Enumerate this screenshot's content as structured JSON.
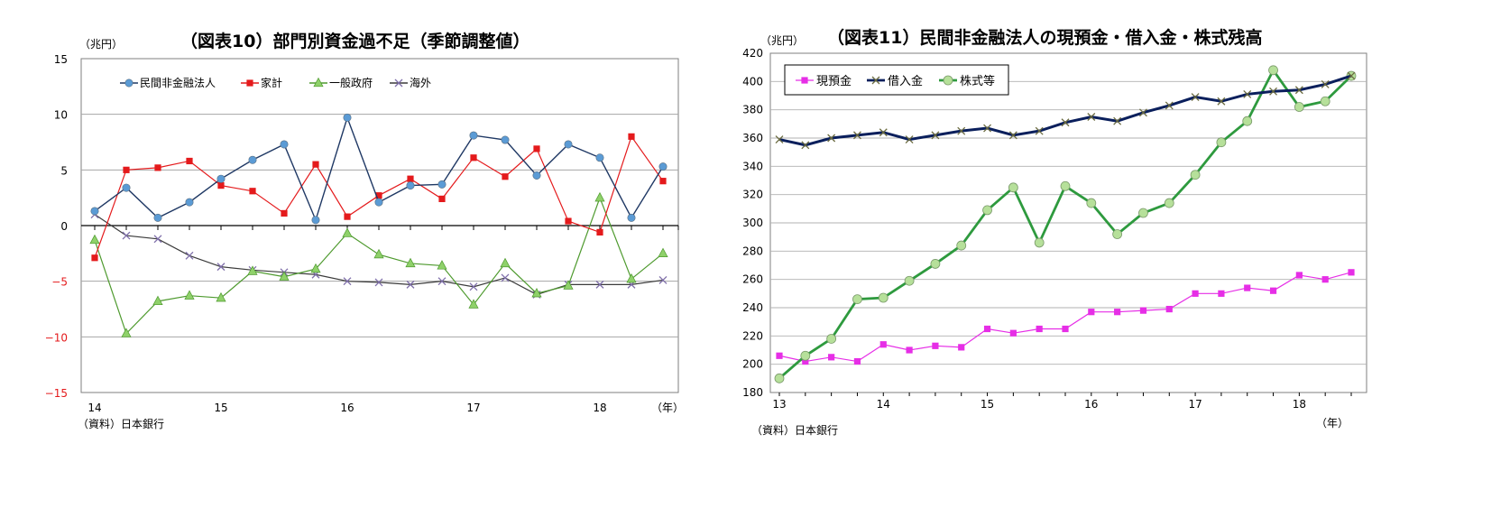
{
  "chart_data": [
    {
      "type": "line",
      "title": "（図表10）部門別資金過不足（季節調整値）",
      "unit_label": "（兆円）",
      "source": "（資料）日本銀行",
      "x_unit": "（年）",
      "xticks": [
        "14",
        "15",
        "16",
        "17",
        "18"
      ],
      "yticks": [
        "15",
        "10",
        "5",
        "0",
        "−5",
        "−10",
        "−15"
      ],
      "ylim": [
        -15,
        15
      ],
      "legend_position": "top-left",
      "x": [
        "2014Q1",
        "2014Q2",
        "2014Q3",
        "2014Q4",
        "2015Q1",
        "2015Q2",
        "2015Q3",
        "2015Q4",
        "2016Q1",
        "2016Q2",
        "2016Q3",
        "2016Q4",
        "2017Q1",
        "2017Q2",
        "2017Q3",
        "2017Q4",
        "2018Q1",
        "2018Q2",
        "2018Q3"
      ],
      "series": [
        {
          "name": "民間非金融法人",
          "color": "#1F3864",
          "marker": "circle",
          "marker_color": "#5B9BD5",
          "values": [
            1.3,
            3.4,
            0.7,
            2.1,
            4.2,
            5.9,
            7.3,
            0.5,
            9.7,
            2.1,
            3.6,
            3.7,
            8.1,
            7.7,
            4.5,
            7.3,
            6.1,
            0.7,
            5.3
          ]
        },
        {
          "name": "家計",
          "color": "#E41A1C",
          "marker": "square",
          "marker_color": "#E41A1C",
          "values": [
            -2.9,
            5.0,
            5.2,
            5.8,
            3.6,
            3.1,
            1.1,
            5.5,
            0.8,
            2.7,
            4.2,
            2.4,
            6.1,
            4.4,
            6.9,
            0.4,
            -0.6,
            8.0,
            4.0
          ]
        },
        {
          "name": "一般政府",
          "color": "#4E9A2E",
          "marker": "triangle",
          "marker_color": "#8FD16A",
          "values": [
            -1.3,
            -9.7,
            -6.8,
            -6.3,
            -6.5,
            -4.1,
            -4.6,
            -3.9,
            -0.7,
            -2.6,
            -3.4,
            -3.6,
            -7.1,
            -3.4,
            -6.1,
            -5.4,
            2.5,
            -4.8,
            -2.5
          ]
        },
        {
          "name": "海外",
          "color": "#3B3B3B",
          "marker": "x",
          "marker_color": "#7F6FAA",
          "values": [
            1.0,
            -0.9,
            -1.2,
            -2.7,
            -3.7,
            -4.0,
            -4.2,
            -4.4,
            -5.0,
            -5.1,
            -5.3,
            -5.0,
            -5.5,
            -4.7,
            -6.2,
            -5.3,
            -5.3,
            -5.3,
            -4.9
          ]
        }
      ]
    },
    {
      "type": "line",
      "title": "（図表11）民間非金融法人の現預金・借入金・株式残高",
      "unit_label": "（兆円）",
      "source": "（資料）日本銀行",
      "x_unit": "（年）",
      "xticks": [
        "13",
        "14",
        "15",
        "16",
        "17",
        "18"
      ],
      "yticks": [
        "420",
        "400",
        "380",
        "360",
        "340",
        "320",
        "300",
        "280",
        "260",
        "240",
        "220",
        "200",
        "180"
      ],
      "ylim": [
        180,
        420
      ],
      "legend_position": "top-left",
      "x": [
        "2013Q1",
        "2013Q2",
        "2013Q3",
        "2013Q4",
        "2014Q1",
        "2014Q2",
        "2014Q3",
        "2014Q4",
        "2015Q1",
        "2015Q2",
        "2015Q3",
        "2015Q4",
        "2016Q1",
        "2016Q2",
        "2016Q3",
        "2016Q4",
        "2017Q1",
        "2017Q2",
        "2017Q3",
        "2017Q4",
        "2018Q1",
        "2018Q2",
        "2018Q3"
      ],
      "series": [
        {
          "name": "現預金",
          "color": "#E62EE6",
          "marker": "square",
          "marker_color": "#E62EE6",
          "values": [
            206,
            202,
            205,
            202,
            214,
            210,
            213,
            212,
            225,
            222,
            225,
            225,
            237,
            237,
            238,
            239,
            250,
            250,
            254,
            252,
            263,
            260,
            265
          ]
        },
        {
          "name": "借入金",
          "color": "#0A1F5C",
          "marker": "x",
          "marker_color": "#6B6B40",
          "values": [
            359,
            355,
            360,
            362,
            364,
            359,
            362,
            365,
            367,
            362,
            365,
            371,
            375,
            372,
            378,
            383,
            389,
            386,
            391,
            393,
            394,
            398,
            404
          ]
        },
        {
          "name": "株式等",
          "color": "#2E9A3E",
          "marker": "circle",
          "marker_color": "#B6E09A",
          "values": [
            190,
            206,
            218,
            246,
            247,
            259,
            271,
            284,
            309,
            325,
            286,
            326,
            314,
            292,
            307,
            314,
            334,
            357,
            372,
            408,
            382,
            386,
            404
          ]
        }
      ]
    }
  ]
}
